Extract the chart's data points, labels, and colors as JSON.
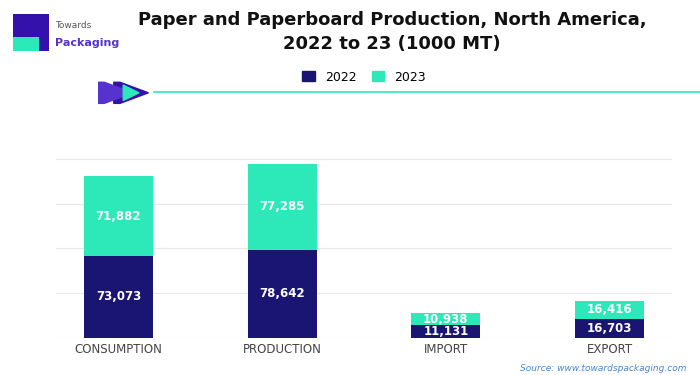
{
  "title": "Paper and Paperboard Production, North America,\n2022 to 23 (1000 MT)",
  "categories": [
    "CONSUMPTION",
    "PRODUCTION",
    "IMPORT",
    "EXPORT"
  ],
  "values_2022": [
    73073,
    78642,
    11131,
    16703
  ],
  "values_2023": [
    71882,
    77285,
    10938,
    16416
  ],
  "color_2022": "#1a1472",
  "color_2023": "#2de8b8",
  "title_fontsize": 13,
  "label_fontsize": 8.5,
  "source_text": "Source: www.towardspackaging.com",
  "legend_labels": [
    "2022",
    "2023"
  ],
  "background_color": "#ffffff",
  "bar_width": 0.42,
  "ylim": [
    0,
    175000
  ],
  "gridline_color": "#e8e8e8",
  "separator_line_color": "#2de8b8",
  "chevron_color": "#5533cc",
  "chevron_gem_color": "#2de8b8",
  "axis_label_color": "#555555",
  "source_color": "#4488cc"
}
